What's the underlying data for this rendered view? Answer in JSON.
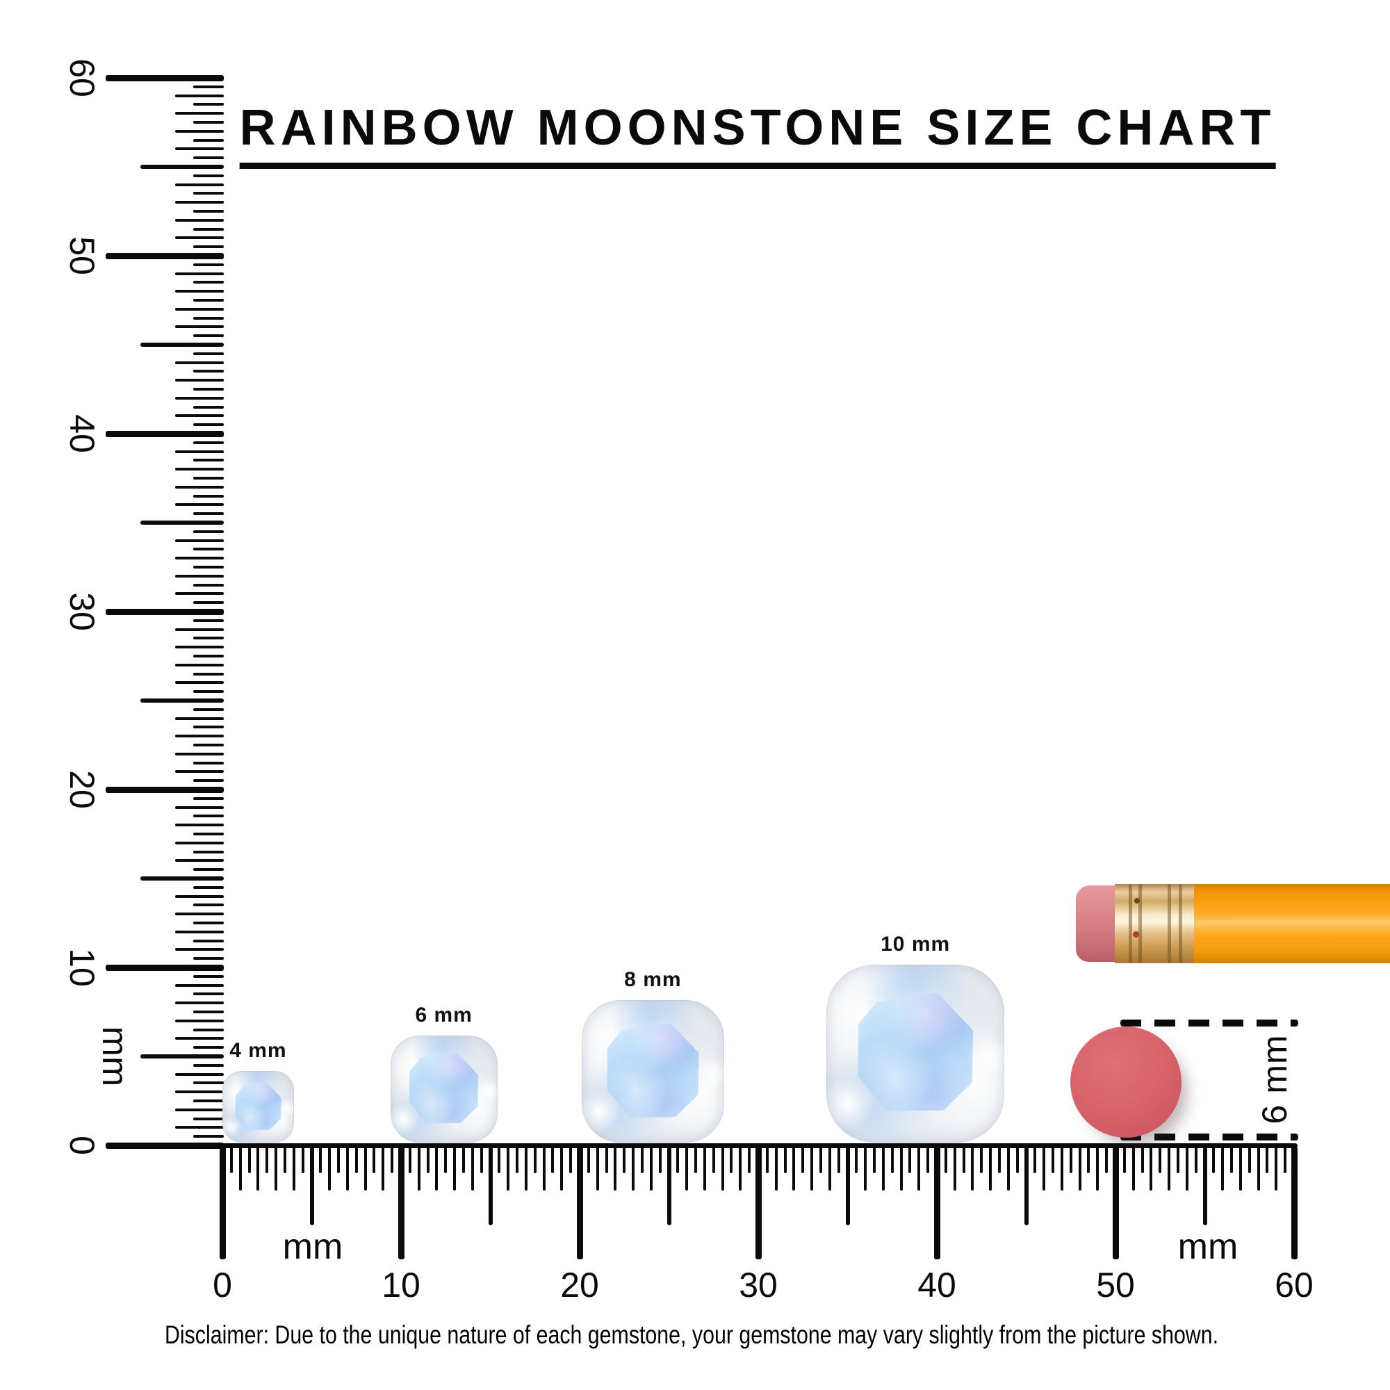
{
  "title": "RAINBOW MOONSTONE SIZE CHART",
  "rulers": {
    "unit_label": "mm",
    "min_mm": 0,
    "max_mm": 60,
    "tick_step_mm": 0.5,
    "number_step_mm": 10,
    "number_labels": [
      "0",
      "10",
      "20",
      "30",
      "40",
      "50",
      "60"
    ]
  },
  "gems": [
    {
      "label": "4 mm",
      "size_mm": 4,
      "center_at_mm": 2.0
    },
    {
      "label": "6 mm",
      "size_mm": 6,
      "center_at_mm": 12.4
    },
    {
      "label": "8 mm",
      "size_mm": 8,
      "center_at_mm": 24.1
    },
    {
      "label": "10 mm",
      "size_mm": 10,
      "center_at_mm": 38.8
    }
  ],
  "eraser": {
    "annotation_label": "6 mm",
    "diameter_mm": 6
  },
  "disclaimer": "Disclaimer: Due to the unique nature of each gemstone, your gemstone may vary slightly from the picture shown.",
  "colors": {
    "ink": "#0a0a0a",
    "gem_blue": "#a6cdf5",
    "gem_blue_light": "#d9edfb",
    "gem_lavender": "#b7a2f0",
    "gem_rim": "#e7eaef",
    "eraser_red": "#d9646c",
    "pencil_orange": "#f9a011",
    "pencil_eraser_pink": "#d47d82",
    "ferrule_gold": "#d3a964"
  }
}
